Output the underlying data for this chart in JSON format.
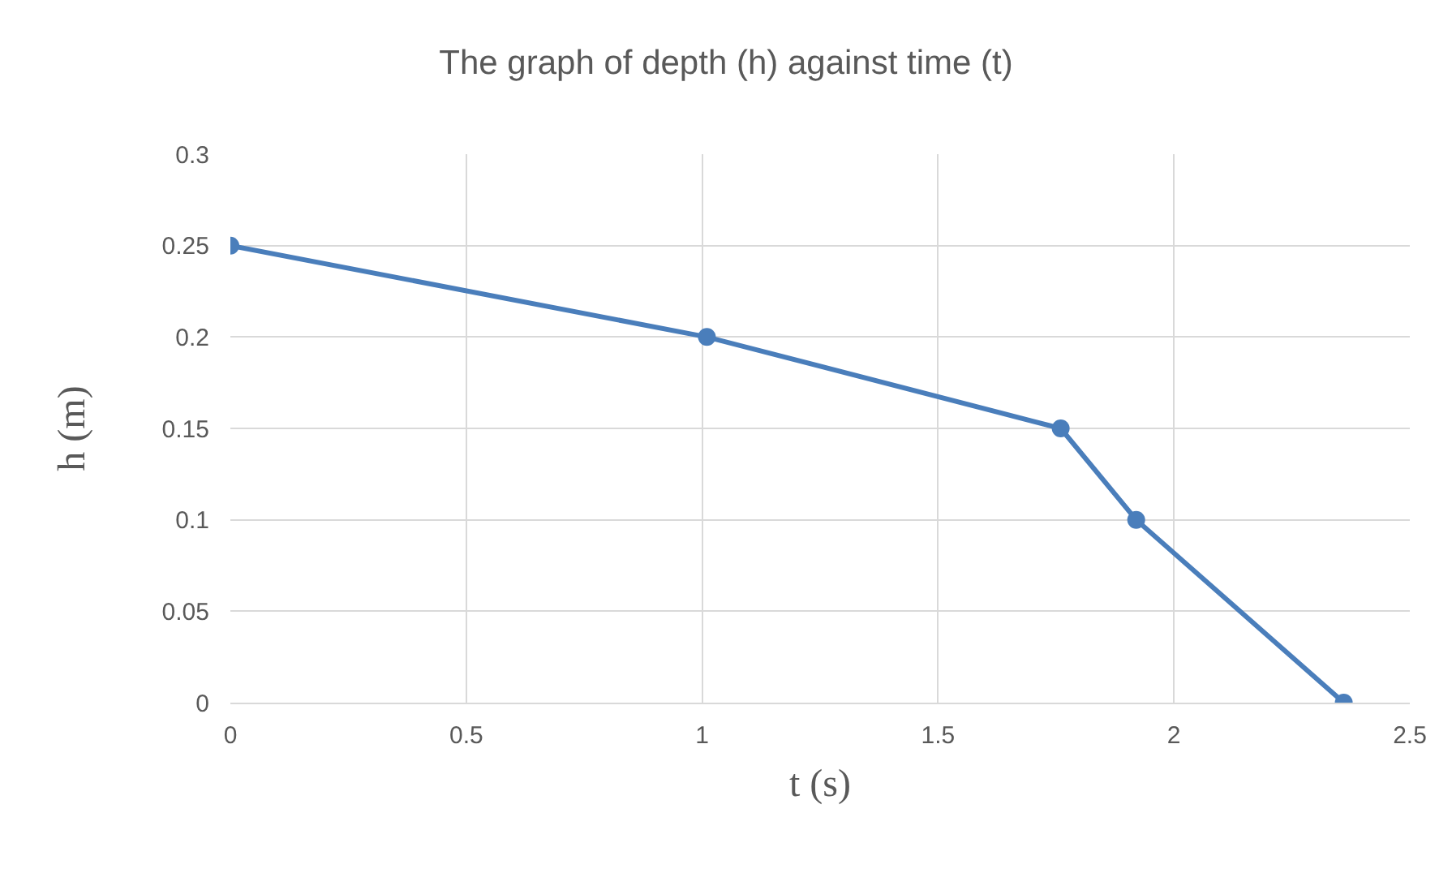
{
  "chart_data": {
    "type": "line",
    "title": "The graph of depth (h) against time (t)",
    "xlabel": "t (s)",
    "ylabel": "h (m)",
    "x": [
      0,
      1.01,
      1.76,
      1.92,
      2.36
    ],
    "series": [
      {
        "color": "#4a7ebb",
        "values": [
          0.25,
          0.2,
          0.15,
          0.1,
          0
        ]
      }
    ],
    "xlim": [
      0,
      2.5
    ],
    "xticks": [
      0,
      0.5,
      1,
      1.5,
      2,
      2.5
    ],
    "ylim": [
      0,
      0.3
    ],
    "yticks": [
      0,
      0.05,
      0.1,
      0.15,
      0.2,
      0.25,
      0.3
    ],
    "grid": true,
    "marker": "circle",
    "line_style": "solid"
  }
}
